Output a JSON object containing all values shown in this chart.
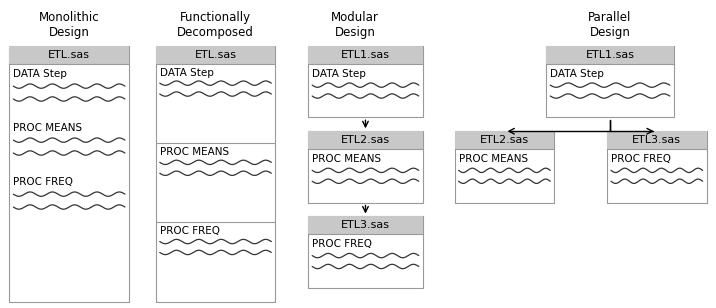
{
  "bg_color": "#ffffff",
  "edge_color": "#999999",
  "header_fill": "#c8c8c8",
  "text_color": "#000000",
  "wavy_color": "#333333",
  "fig_width": 7.16,
  "fig_height": 3.08,
  "dpi": 100,
  "col1_title": "Monolithic\nDesign",
  "col2_title": "Functionally\nDecomposed",
  "col3_title": "Modular\nDesign",
  "col4_title": "Parallel\nDesign",
  "title_fontsize": 8.5,
  "header_fontsize": 8.0,
  "content_fontsize": 7.5
}
